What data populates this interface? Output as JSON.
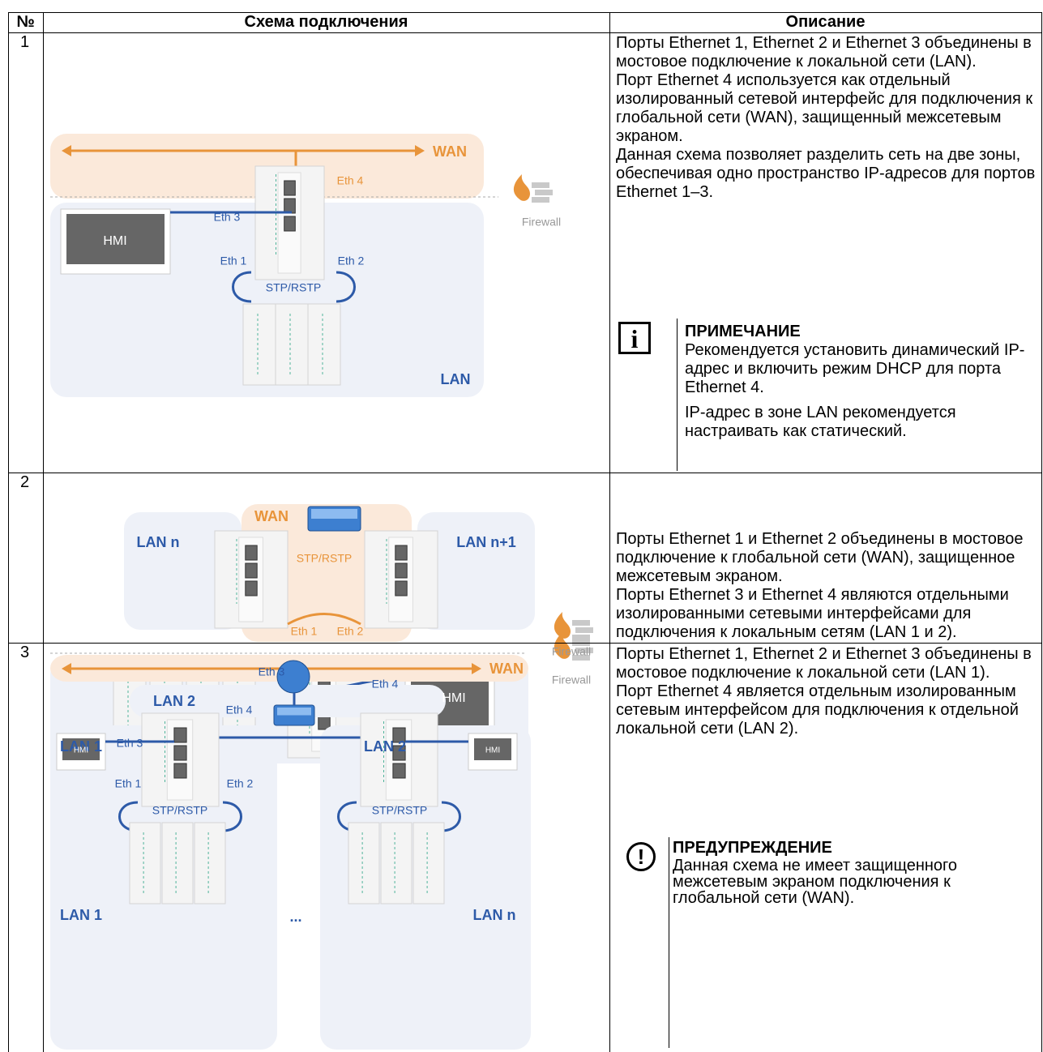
{
  "header": {
    "number": "№",
    "scheme": "Схема подключения",
    "description": "Описание"
  },
  "rows": [
    {
      "number": "1",
      "diagram": {
        "wan": "WAN",
        "eth4": "Eth 4",
        "eth3": "Eth 3",
        "hmi": "HMI",
        "eth1": "Eth 1",
        "eth2": "Eth 2",
        "ring": "STP/RSTP",
        "lan": "LAN",
        "firewall": "Firewall"
      },
      "description": [
        "Порты Ethernet 1, Ethernet 2 и Ethernet 3 объединены в мостовое подключение к локальной сети (LAN).",
        "Порт Ethernet 4 используется как отдельный изолированный сетевой интерфейс для подключения к глобальной сети (WAN), защищенный межсетевым экраном.",
        "Данная схема позволяет разделить сеть на две зоны, обеспечивая одно пространство IP-адресов для портов Ethernet 1–3."
      ],
      "note": {
        "title": "ПРИМЕЧАНИЕ",
        "paragraphs": [
          "Рекомендуется установить динамический IP-адрес и включить режим DHCP для порта Ethernet 4.",
          "IP-адрес в зоне LAN рекомендуется настраивать как статический."
        ]
      }
    },
    {
      "number": "2",
      "diagram": {
        "wan": "WAN",
        "lan_n": "LAN n",
        "lan_n1": "LAN n+1",
        "ring": "STP/RSTP",
        "eth1": "Eth 1",
        "eth2": "Eth 2",
        "eth3": "Eth 3",
        "eth4": "Eth 4",
        "hmi": "HMI",
        "lan1": "LAN 1",
        "lan2": "LAN 2",
        "firewall": "Firewall"
      },
      "description": [
        "Порты Ethernet 1 и Ethernet 2 объединены в мостовое подключение к глобальной сети (WAN), защищенное межсетевым экраном.",
        "Порты Ethernet 3 и Ethernet 4 являются отдельными изолированными сетевыми интерфейсами для подключения к локальным сетям (LAN 1 и 2)."
      ]
    },
    {
      "number": "3",
      "diagram": {
        "wan": "WAN",
        "lan2": "LAN 2",
        "eth4": "Eth 4",
        "eth3": "Eth 3",
        "hmi_left": "HMI",
        "hmi_right": "HMI",
        "eth1": "Eth 1",
        "eth2": "Eth 2",
        "ring_left": "STP/RSTP",
        "ring_right": "STP/RSTP",
        "lan1": "LAN 1",
        "ellipsis": "...",
        "lan_n": "LAN n",
        "firewall": "Firewall"
      },
      "description": [
        "Порты Ethernet 1, Ethernet 2 и Ethernet 3 объединены в мостовое подключение к локальной сети (LAN 1).",
        "Порт Ethernet 4 является отдельным изолированным сетевым интерфейсом для подключения к отдельной локальной сети (LAN 2)."
      ],
      "warning": {
        "title": "ПРЕДУПРЕЖДЕНИЕ",
        "text": "Данная схема не имеет защищенного межсетевым экраном подключения к глобальной сети (WAN)."
      }
    }
  ]
}
